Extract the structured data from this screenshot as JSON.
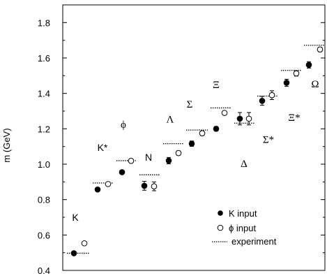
{
  "chart_data": {
    "type": "scatter",
    "ylabel": "m (GeV)",
    "xlabel": "",
    "ylim": [
      0.4,
      1.9
    ],
    "y_ticks": [
      "0.4",
      "0.6",
      "0.8",
      "1.0",
      "1.2",
      "1.4",
      "1.6",
      "1.8"
    ],
    "grid": false,
    "legend_position": "bottom-right",
    "legend": {
      "k_input": "K input",
      "phi_input": "ϕ input",
      "experiment": "experiment"
    },
    "categories": [
      "K",
      "K*",
      "ϕ",
      "N",
      "Λ",
      "Σ",
      "Ξ",
      "Δ",
      "Σ*",
      "Ξ*",
      "Ω"
    ],
    "series": [
      {
        "name": "K input",
        "marker": "filled-circle",
        "points": [
          {
            "category": "K",
            "y": 0.497,
            "err": 0.004
          },
          {
            "category": "K*",
            "y": 0.857,
            "err": 0.006
          },
          {
            "category": "ϕ",
            "y": 0.955,
            "err": 0.008
          },
          {
            "category": "N",
            "y": 0.878,
            "err": 0.025
          },
          {
            "category": "Λ",
            "y": 1.02,
            "err": 0.018
          },
          {
            "category": "Σ",
            "y": 1.116,
            "err": 0.015
          },
          {
            "category": "Ξ",
            "y": 1.2,
            "err": 0.012
          },
          {
            "category": "Δ",
            "y": 1.257,
            "err": 0.035
          },
          {
            "category": "Σ*",
            "y": 1.358,
            "err": 0.025
          },
          {
            "category": "Ξ*",
            "y": 1.46,
            "err": 0.02
          },
          {
            "category": "Ω",
            "y": 1.561,
            "err": 0.018
          }
        ]
      },
      {
        "name": "ϕ input",
        "marker": "open-circle",
        "points": [
          {
            "category": "K",
            "y": 0.553,
            "err": 0.004
          },
          {
            "category": "K*",
            "y": 0.888,
            "err": 0.006
          },
          {
            "category": "ϕ",
            "y": 1.019,
            "err": 0.005
          },
          {
            "category": "N",
            "y": 0.875,
            "err": 0.025
          },
          {
            "category": "Λ",
            "y": 1.063,
            "err": 0.012
          },
          {
            "category": "Σ",
            "y": 1.175,
            "err": 0.012
          },
          {
            "category": "Ξ",
            "y": 1.29,
            "err": 0.01
          },
          {
            "category": "Δ",
            "y": 1.257,
            "err": 0.035
          },
          {
            "category": "Σ*",
            "y": 1.39,
            "err": 0.025
          },
          {
            "category": "Ξ*",
            "y": 1.513,
            "err": 0.015
          },
          {
            "category": "Ω",
            "y": 1.648,
            "err": 0.012
          }
        ]
      },
      {
        "name": "experiment",
        "marker": "dotted-line",
        "points": [
          {
            "category": "K",
            "y": 0.497
          },
          {
            "category": "K*",
            "y": 0.894
          },
          {
            "category": "ϕ",
            "y": 1.02
          },
          {
            "category": "N",
            "y": 0.94
          },
          {
            "category": "Λ",
            "y": 1.116
          },
          {
            "category": "Σ",
            "y": 1.193
          },
          {
            "category": "Ξ",
            "y": 1.318
          },
          {
            "category": "Δ",
            "y": 1.232
          },
          {
            "category": "Σ*",
            "y": 1.385
          },
          {
            "category": "Ξ*",
            "y": 1.53
          },
          {
            "category": "Ω",
            "y": 1.672
          }
        ]
      }
    ],
    "labels": [
      {
        "category": "K",
        "text": "K",
        "y": 0.68,
        "font": "sans"
      },
      {
        "category": "K*",
        "text": "K*",
        "y": 1.075,
        "font": "sans"
      },
      {
        "category": "ϕ",
        "text": "ϕ",
        "y": 1.205,
        "font": "serif"
      },
      {
        "category": "N",
        "text": "N",
        "y": 1.02,
        "font": "sans"
      },
      {
        "category": "Λ",
        "text": "Λ",
        "y": 1.235,
        "font": "serif"
      },
      {
        "category": "Σ",
        "text": "Σ",
        "y": 1.32,
        "font": "serif"
      },
      {
        "category": "Ξ",
        "text": "Ξ",
        "y": 1.43,
        "font": "serif"
      },
      {
        "category": "Δ",
        "text": "Δ",
        "y": 0.985,
        "font": "serif"
      },
      {
        "category": "Σ*",
        "text": "Σ*",
        "y": 1.12,
        "font": "serif"
      },
      {
        "category": "Ξ*",
        "text": "Ξ*",
        "y": 1.245,
        "font": "serif"
      },
      {
        "category": "Ω",
        "text": "Ω",
        "y": 1.435,
        "font": "serif"
      }
    ]
  }
}
